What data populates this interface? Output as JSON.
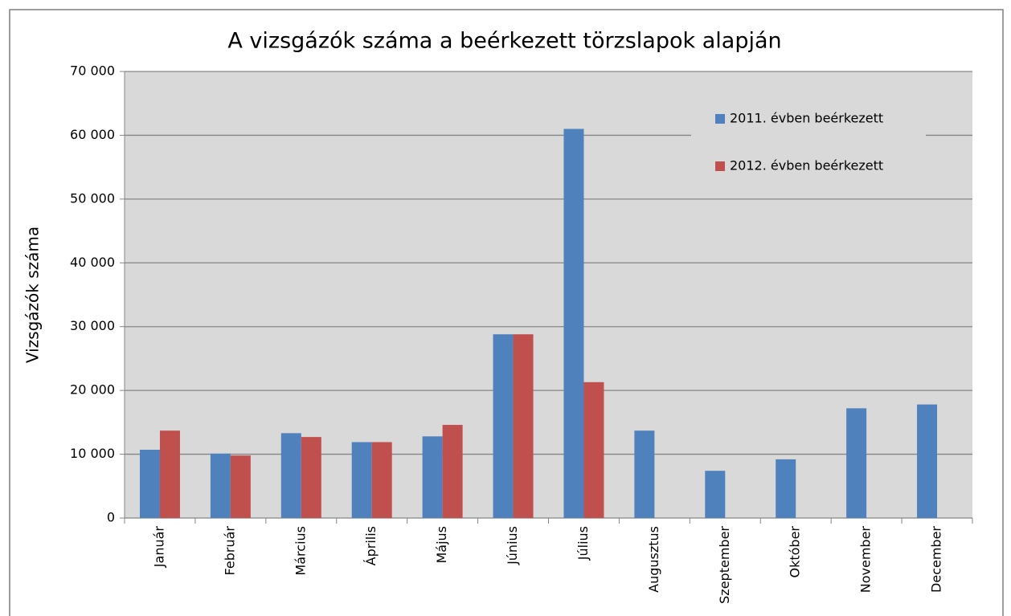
{
  "chart_data": {
    "type": "bar",
    "title": "A vizsgázók száma a beérkezett törzslapok alapján",
    "y_label": "Vizsgázók száma",
    "categories": [
      "Január",
      "Február",
      "Március",
      "Április",
      "Május",
      "Június",
      "Július",
      "Augusztus",
      "Szeptember",
      "Október",
      "November",
      "December"
    ],
    "series": [
      {
        "name": "2011.  évben beérkezett",
        "color": "#4f81bd",
        "values": [
          10700,
          10100,
          13300,
          11900,
          12800,
          28800,
          61000,
          13700,
          7400,
          9200,
          17200,
          17800
        ]
      },
      {
        "name": "2012. évben beérkezett",
        "color": "#c0504d",
        "values": [
          13700,
          9800,
          12700,
          11900,
          14600,
          28800,
          21300,
          null,
          null,
          null,
          null,
          null
        ]
      }
    ],
    "ylim": [
      0,
      70000
    ],
    "yticks": [
      0,
      {
        "value": 10000,
        "label": "10 000"
      },
      {
        "value": 20000,
        "label": "20 000"
      },
      {
        "value": 30000,
        "label": "30 000"
      },
      {
        "value": 40000,
        "label": "40 000"
      },
      {
        "value": 50000,
        "label": "50 000"
      },
      {
        "value": 60000,
        "label": "60 000"
      },
      {
        "value": 70000,
        "label": "70 000"
      }
    ],
    "grid": true,
    "legend": "top-right"
  }
}
